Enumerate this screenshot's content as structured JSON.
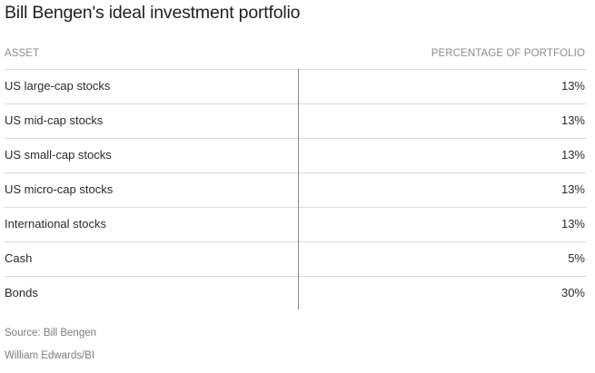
{
  "title": "Bill Bengen's ideal investment portfolio",
  "table": {
    "headers": {
      "asset": "ASSET",
      "percentage": "PERCENTAGE OF PORTFOLIO"
    },
    "rows": [
      {
        "asset": "US large-cap stocks",
        "percentage": "13%"
      },
      {
        "asset": "US mid-cap stocks",
        "percentage": "13%"
      },
      {
        "asset": "US small-cap stocks",
        "percentage": "13%"
      },
      {
        "asset": "US micro-cap stocks",
        "percentage": "13%"
      },
      {
        "asset": "International stocks",
        "percentage": "13%"
      },
      {
        "asset": "Cash",
        "percentage": "5%"
      },
      {
        "asset": "Bonds",
        "percentage": "30%"
      }
    ]
  },
  "footer": {
    "source": "Source: Bill Bengen",
    "credit": "William Edwards/BI"
  }
}
